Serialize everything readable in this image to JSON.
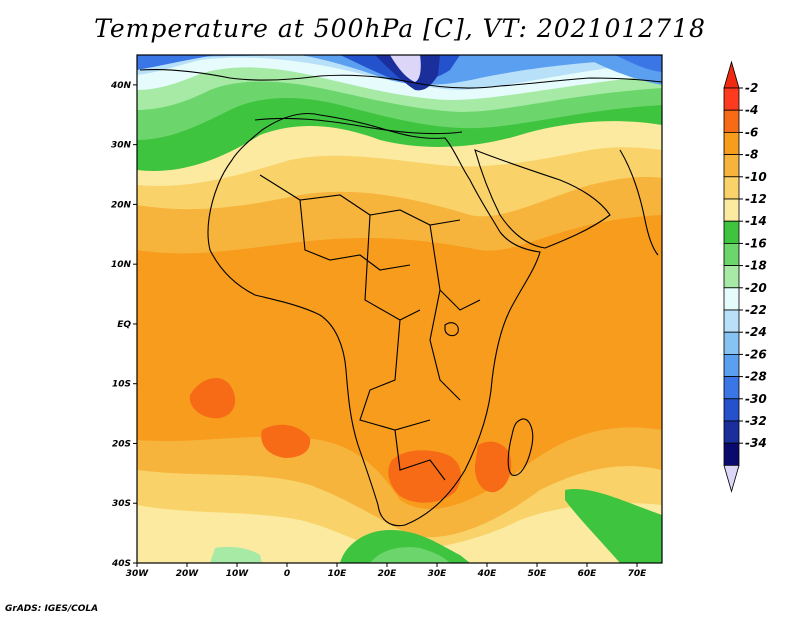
{
  "title": "Temperature at 500hPa [C], VT: 2021012718",
  "footer": "GrADS: IGES/COLA",
  "map": {
    "lon_range": [
      -30,
      75
    ],
    "lat_range": [
      -40,
      45
    ],
    "lon_ticks": [
      "30W",
      "20W",
      "10W",
      "0",
      "10E",
      "20E",
      "30E",
      "40E",
      "50E",
      "60E",
      "70E"
    ],
    "lat_ticks": [
      "40S",
      "30S",
      "20S",
      "10S",
      "EQ",
      "10N",
      "20N",
      "30N",
      "40N"
    ]
  },
  "legend": {
    "labels": [
      "-2",
      "-4",
      "-6",
      "-8",
      "-10",
      "-12",
      "-14",
      "-16",
      "-18",
      "-20",
      "-22",
      "-24",
      "-26",
      "-28",
      "-30",
      "-32",
      "-34"
    ],
    "colors": [
      "#ff3b1f",
      "#f76b16",
      "#f79c1c",
      "#f7b43c",
      "#f9d36a",
      "#fbeaa0",
      "#3ec43e",
      "#6cd66c",
      "#a6eaa6",
      "#e6fbfb",
      "#b8e0f8",
      "#86c2f2",
      "#5b9ff0",
      "#3a76e6",
      "#2452cc",
      "#1a2e9c",
      "#0a0a6e"
    ],
    "top_color": "#f02a10",
    "bottom_color": "#dcd6f8"
  },
  "colors": {
    "very_warm": "#f76b16",
    "warm": "#f79c1c",
    "mild": "#f7b43c",
    "cool": "#f9d36a",
    "pale": "#fbeaa0",
    "green": "#3ec43e",
    "light_green": "#6cd66c",
    "mint": "#a6eaa6",
    "cyan": "#e6fbfb",
    "light_blue": "#b8e0f8",
    "blue": "#5b9ff0",
    "dark_blue": "#2452cc",
    "navy": "#1a2e9c",
    "lavender": "#dcd6f8"
  }
}
